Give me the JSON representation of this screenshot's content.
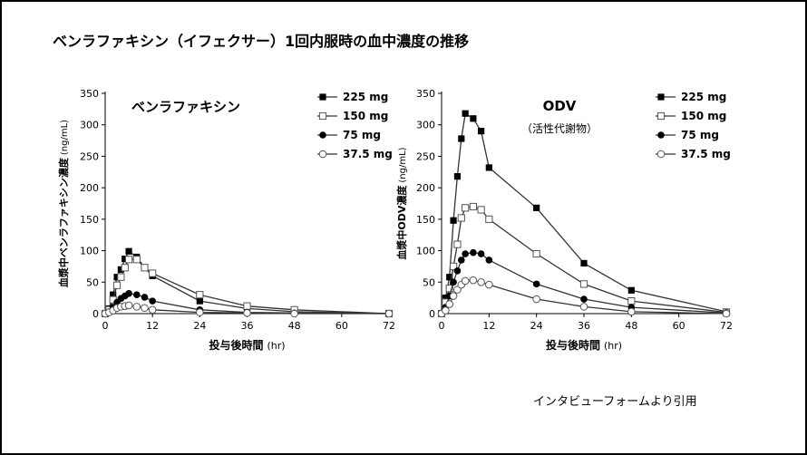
{
  "page": {
    "title": "ベンラファキシン（イフェクサー）1回内服時の血中濃度の推移",
    "citation": "インタビューフォームより引用"
  },
  "chart_data": [
    {
      "type": "line",
      "title": "ベンラファキシン",
      "subtitle": "",
      "xlabel": "投与後時間",
      "xunit": "(hr)",
      "ylabel": "血漿中ベンラファキシン濃度",
      "yunit": "(ng/mL)",
      "xlim": [
        0,
        72
      ],
      "ylim": [
        0,
        350
      ],
      "xticks": [
        0,
        12,
        24,
        36,
        48,
        60,
        72
      ],
      "yticks": [
        0,
        50,
        100,
        150,
        200,
        250,
        300,
        350
      ],
      "legend_position": "top-right",
      "series": [
        {
          "name": "225 mg",
          "marker": "square-filled",
          "x": [
            0,
            1,
            2,
            3,
            4,
            5,
            6,
            8,
            10,
            12,
            24,
            36,
            48,
            72
          ],
          "y": [
            0,
            8,
            30,
            58,
            70,
            87,
            99,
            90,
            73,
            60,
            20,
            8,
            3,
            0
          ]
        },
        {
          "name": "150 mg",
          "marker": "square-open",
          "x": [
            0,
            1,
            2,
            3,
            4,
            5,
            6,
            8,
            10,
            12,
            24,
            36,
            48,
            72
          ],
          "y": [
            0,
            6,
            22,
            45,
            58,
            73,
            86,
            86,
            73,
            64,
            30,
            12,
            6,
            0
          ]
        },
        {
          "name": "75 mg",
          "marker": "circle-filled",
          "x": [
            0,
            1,
            2,
            3,
            4,
            5,
            6,
            8,
            10,
            12,
            24,
            36,
            48,
            72
          ],
          "y": [
            0,
            3,
            10,
            18,
            24,
            28,
            32,
            30,
            26,
            20,
            6,
            2,
            1,
            0
          ]
        },
        {
          "name": "37.5 mg",
          "marker": "circle-open",
          "x": [
            0,
            1,
            2,
            3,
            4,
            5,
            6,
            8,
            10,
            12,
            24,
            36,
            48,
            72
          ],
          "y": [
            0,
            2,
            5,
            9,
            11,
            12,
            13,
            11,
            9,
            6,
            2,
            1,
            0,
            0
          ]
        }
      ]
    },
    {
      "type": "line",
      "title": "ODV",
      "subtitle": "（活性代謝物）",
      "xlabel": "投与後時間",
      "xunit": "(hr)",
      "ylabel": "血漿中ODV濃度",
      "yunit": "(ng/mL)",
      "xlim": [
        0,
        72
      ],
      "ylim": [
        0,
        350
      ],
      "xticks": [
        0,
        12,
        24,
        36,
        48,
        60,
        72
      ],
      "yticks": [
        0,
        50,
        100,
        150,
        200,
        250,
        300,
        350
      ],
      "legend_position": "top-right",
      "series": [
        {
          "name": "225 mg",
          "marker": "square-filled",
          "x": [
            0,
            1,
            2,
            3,
            4,
            5,
            6,
            8,
            10,
            12,
            24,
            36,
            48,
            72
          ],
          "y": [
            0,
            25,
            58,
            148,
            218,
            278,
            318,
            310,
            290,
            232,
            168,
            80,
            37,
            3
          ]
        },
        {
          "name": "150 mg",
          "marker": "square-open",
          "x": [
            0,
            1,
            2,
            3,
            4,
            5,
            6,
            8,
            10,
            12,
            24,
            36,
            48,
            72
          ],
          "y": [
            0,
            18,
            40,
            75,
            110,
            152,
            168,
            170,
            165,
            150,
            95,
            47,
            20,
            2
          ]
        },
        {
          "name": "75 mg",
          "marker": "circle-filled",
          "x": [
            0,
            1,
            2,
            3,
            4,
            5,
            6,
            8,
            10,
            12,
            24,
            36,
            48,
            72
          ],
          "y": [
            0,
            10,
            28,
            50,
            68,
            85,
            95,
            97,
            95,
            85,
            47,
            23,
            10,
            1
          ]
        },
        {
          "name": "37.5 mg",
          "marker": "circle-open",
          "x": [
            0,
            1,
            2,
            3,
            4,
            5,
            6,
            8,
            10,
            12,
            24,
            36,
            48,
            72
          ],
          "y": [
            0,
            5,
            15,
            28,
            38,
            46,
            52,
            53,
            50,
            46,
            23,
            11,
            3,
            0
          ]
        }
      ]
    }
  ]
}
